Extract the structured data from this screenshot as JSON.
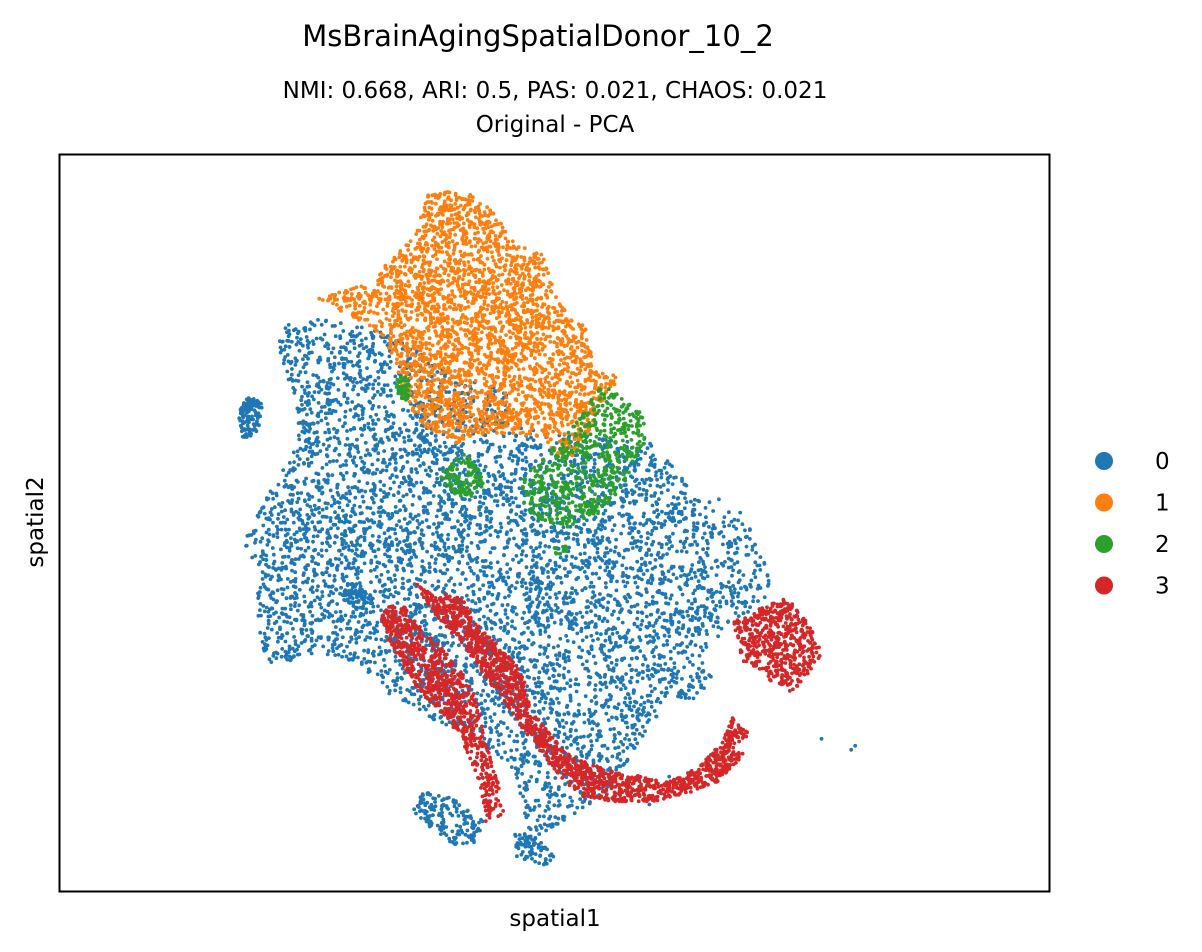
{
  "chart_data": {
    "type": "scatter",
    "title": "MsBrainAgingSpatialDonor_10_2",
    "subtitle_lines": [
      "NMI: 0.668,  ARI: 0.5,  PAS: 0.021,  CHAOS: 0.021",
      "Original - PCA"
    ],
    "xlabel": "spatial1",
    "ylabel": "spatial2",
    "grid": false,
    "ticks": false,
    "legend_position": "right",
    "xlim": [
      0,
      1000
    ],
    "ylim": [
      0,
      740
    ],
    "series": [
      {
        "name": "0",
        "color": "#1f77b4",
        "regions": [
          {
            "polygon": [
              [
                220,
                555
              ],
              [
                230,
                570
              ],
              [
                265,
                575
              ],
              [
                320,
                565
              ],
              [
                360,
                545
              ],
              [
                400,
                515
              ],
              [
                430,
                510
              ],
              [
                455,
                500
              ],
              [
                450,
                470
              ],
              [
                540,
                455
              ],
              [
                600,
                450
              ],
              [
                650,
                390
              ],
              [
                665,
                395
              ],
              [
                690,
                380
              ],
              [
                700,
                360
              ],
              [
                710,
                340
              ],
              [
                720,
                305
              ],
              [
                705,
                285
              ],
              [
                680,
                270
              ],
              [
                650,
                240
              ],
              [
                620,
                200
              ],
              [
                600,
                170
              ],
              [
                580,
                140
              ],
              [
                560,
                110
              ],
              [
                540,
                90
              ],
              [
                510,
                70
              ],
              [
                480,
                55
              ],
              [
                460,
                40
              ],
              [
                470,
                80
              ],
              [
                460,
                120
              ],
              [
                420,
                150
              ],
              [
                380,
                170
              ],
              [
                330,
                200
              ],
              [
                300,
                230
              ],
              [
                260,
                240
              ],
              [
                230,
                230
              ],
              [
                210,
                230
              ],
              [
                200,
                260
              ],
              [
                200,
                290
              ],
              [
                200,
                320
              ],
              [
                185,
                350
              ],
              [
                200,
                380
              ],
              [
                215,
                410
              ],
              [
                230,
                430
              ],
              [
                240,
                460
              ],
              [
                240,
                490
              ],
              [
                225,
                530
              ]
            ],
            "count": 5600
          },
          {
            "polygon": [
              [
                185,
                455
              ],
              [
                200,
                460
              ],
              [
                205,
                490
              ],
              [
                190,
                500
              ],
              [
                180,
                480
              ]
            ],
            "count": 120
          },
          {
            "polygon": [
              [
                290,
                310
              ],
              [
                310,
                305
              ],
              [
                320,
                290
              ],
              [
                300,
                280
              ],
              [
                285,
                295
              ]
            ],
            "count": 60
          },
          {
            "polygon": [
              [
                370,
                100
              ],
              [
                395,
                95
              ],
              [
                415,
                80
              ],
              [
                430,
                70
              ],
              [
                425,
                50
              ],
              [
                400,
                45
              ],
              [
                380,
                60
              ],
              [
                360,
                75
              ],
              [
                355,
                90
              ]
            ],
            "count": 160
          },
          {
            "polygon": [
              [
                460,
                60
              ],
              [
                480,
                55
              ],
              [
                500,
                35
              ],
              [
                490,
                25
              ],
              [
                470,
                30
              ],
              [
                460,
                45
              ]
            ],
            "count": 70
          },
          {
            "polygon": [
              [
                620,
                195
              ],
              [
                650,
                230
              ],
              [
                660,
                215
              ],
              [
                640,
                190
              ]
            ],
            "count": 40
          }
        ],
        "points": [
          [
            462,
            35
          ],
          [
            770,
            153
          ],
          [
            800,
            142
          ],
          [
            804,
            146
          ],
          [
            616,
            115
          ],
          [
            596,
            87
          ]
        ]
      },
      {
        "name": "1",
        "color": "#ff7f0e",
        "regions": [
          {
            "polygon": [
              [
                258,
                595
              ],
              [
                310,
                610
              ],
              [
                330,
                630
              ],
              [
                360,
                660
              ],
              [
                370,
                700
              ],
              [
                400,
                705
              ],
              [
                420,
                700
              ],
              [
                440,
                680
              ],
              [
                460,
                650
              ],
              [
                490,
                640
              ],
              [
                500,
                600
              ],
              [
                520,
                570
              ],
              [
                530,
                570
              ],
              [
                540,
                540
              ],
              [
                550,
                520
              ],
              [
                560,
                520
              ],
              [
                565,
                510
              ],
              [
                555,
                505
              ],
              [
                540,
                470
              ],
              [
                525,
                450
              ],
              [
                515,
                430
              ],
              [
                500,
                440
              ],
              [
                490,
                455
              ],
              [
                460,
                460
              ],
              [
                440,
                460
              ],
              [
                420,
                455
              ],
              [
                400,
                450
              ],
              [
                370,
                465
              ],
              [
                355,
                485
              ],
              [
                345,
                500
              ],
              [
                340,
                530
              ],
              [
                325,
                560
              ],
              [
                300,
                575
              ],
              [
                270,
                590
              ]
            ],
            "count": 2900
          }
        ],
        "points": []
      },
      {
        "name": "2",
        "color": "#2ca02c",
        "regions": [
          {
            "polygon": [
              [
                470,
                420
              ],
              [
                490,
                440
              ],
              [
                510,
                455
              ],
              [
                545,
                505
              ],
              [
                555,
                505
              ],
              [
                570,
                495
              ],
              [
                590,
                480
              ],
              [
                595,
                455
              ],
              [
                585,
                440
              ],
              [
                575,
                420
              ],
              [
                565,
                400
              ],
              [
                545,
                380
              ],
              [
                515,
                365
              ],
              [
                480,
                375
              ],
              [
                465,
                395
              ]
            ],
            "count": 600
          },
          {
            "polygon": [
              [
                390,
                430
              ],
              [
                410,
                440
              ],
              [
                425,
                425
              ],
              [
                430,
                410
              ],
              [
                415,
                395
              ],
              [
                395,
                400
              ],
              [
                385,
                415
              ]
            ],
            "count": 120
          },
          {
            "polygon": [
              [
                340,
                515
              ],
              [
                350,
                520
              ],
              [
                355,
                505
              ],
              [
                350,
                490
              ],
              [
                340,
                500
              ]
            ],
            "count": 45
          },
          {
            "polygon": [
              [
                500,
                345
              ],
              [
                512,
                348
              ],
              [
                512,
                336
              ],
              [
                502,
                338
              ]
            ],
            "count": 12
          }
        ],
        "points": []
      },
      {
        "name": "3",
        "color": "#d62728",
        "regions": [
          {
            "polygon": [
              [
                360,
                310
              ],
              [
                380,
                295
              ],
              [
                395,
                300
              ],
              [
                410,
                290
              ],
              [
                420,
                270
              ],
              [
                440,
                250
              ],
              [
                460,
                230
              ],
              [
                470,
                210
              ],
              [
                475,
                185
              ],
              [
                490,
                165
              ],
              [
                510,
                140
              ],
              [
                530,
                130
              ],
              [
                560,
                120
              ],
              [
                590,
                115
              ],
              [
                610,
                110
              ],
              [
                630,
                115
              ],
              [
                650,
                130
              ],
              [
                670,
                150
              ],
              [
                680,
                175
              ],
              [
                695,
                160
              ],
              [
                690,
                135
              ],
              [
                665,
                110
              ],
              [
                640,
                100
              ],
              [
                600,
                90
              ],
              [
                560,
                90
              ],
              [
                530,
                95
              ],
              [
                510,
                110
              ],
              [
                490,
                135
              ],
              [
                470,
                160
              ],
              [
                450,
                190
              ],
              [
                430,
                215
              ],
              [
                410,
                245
              ],
              [
                390,
                265
              ],
              [
                370,
                290
              ]
            ],
            "count": 1500
          },
          {
            "polygon": [
              [
                330,
                285
              ],
              [
                345,
                290
              ],
              [
                365,
                265
              ],
              [
                390,
                240
              ],
              [
                410,
                215
              ],
              [
                420,
                195
              ],
              [
                425,
                175
              ],
              [
                430,
                150
              ],
              [
                440,
                120
              ],
              [
                445,
                100
              ],
              [
                430,
                95
              ],
              [
                420,
                120
              ],
              [
                405,
                155
              ],
              [
                385,
                180
              ],
              [
                360,
                205
              ],
              [
                345,
                230
              ],
              [
                330,
                255
              ],
              [
                325,
                275
              ]
            ],
            "count": 750
          },
          {
            "polygon": [
              [
                680,
                270
              ],
              [
                710,
                285
              ],
              [
                735,
                295
              ],
              [
                760,
                265
              ],
              [
                770,
                240
              ],
              [
                760,
                220
              ],
              [
                740,
                200
              ],
              [
                720,
                210
              ],
              [
                705,
                225
              ],
              [
                690,
                230
              ],
              [
                685,
                255
              ]
            ],
            "count": 520
          },
          {
            "polygon": [
              [
                425,
                105
              ],
              [
                445,
                90
              ],
              [
                450,
                75
              ],
              [
                430,
                70
              ]
            ],
            "count": 40
          }
        ],
        "points": []
      }
    ]
  }
}
